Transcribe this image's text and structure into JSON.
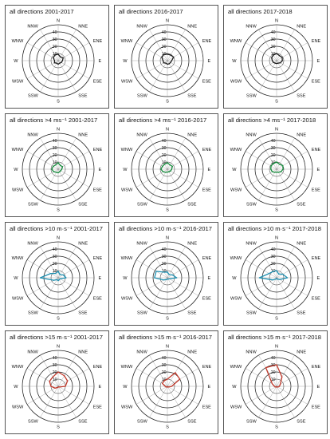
{
  "directions": [
    "N",
    "NNE",
    "ENE",
    "E",
    "ESE",
    "SSE",
    "S",
    "SSW",
    "WSW",
    "W",
    "WNW",
    "NNW"
  ],
  "ring_labels": [
    "10",
    "20",
    "30",
    "40"
  ],
  "colors": {
    "all": "#1a1a1a",
    "gt4": "#138a3a",
    "gt10": "#1f8fb0",
    "gt15": "#c0392b"
  },
  "chart_data": [
    {
      "type": "radar",
      "title": "all directions 2001-2017",
      "rlim": [
        0,
        50
      ],
      "color_key": "all",
      "values": [
        9,
        6,
        8,
        6,
        5,
        4,
        5,
        4,
        6,
        5,
        8,
        9
      ]
    },
    {
      "type": "radar",
      "title": "all directions 2016-2017",
      "rlim": [
        0,
        50
      ],
      "color_key": "all",
      "values": [
        9,
        9,
        10,
        6,
        5,
        5,
        5,
        4,
        6,
        6,
        9,
        10
      ]
    },
    {
      "type": "radar",
      "title": "all directions 2017-2018",
      "rlim": [
        0,
        50
      ],
      "color_key": "all",
      "values": [
        10,
        8,
        9,
        8,
        6,
        4,
        4,
        4,
        5,
        6,
        8,
        9
      ]
    },
    {
      "type": "radar",
      "title": "all directions >4 ms⁻¹ 2001-2017",
      "rlim": [
        0,
        50
      ],
      "color_key": "gt4",
      "values": [
        9,
        6,
        7,
        5,
        4,
        4,
        5,
        5,
        7,
        9,
        8,
        7
      ]
    },
    {
      "type": "radar",
      "title": "all directions >4 ms⁻¹ 2016-2017",
      "rlim": [
        0,
        50
      ],
      "color_key": "gt4",
      "values": [
        9,
        7,
        8,
        6,
        5,
        4,
        4,
        5,
        7,
        9,
        8,
        8
      ]
    },
    {
      "type": "radar",
      "title": "all directions >4 ms⁻¹ 2017-2018",
      "rlim": [
        0,
        50
      ],
      "color_key": "gt4",
      "values": [
        10,
        8,
        10,
        9,
        7,
        5,
        4,
        5,
        7,
        8,
        9,
        9
      ]
    },
    {
      "type": "radar",
      "title": "all directions >10 m·s⁻¹ 2001-2017",
      "rlim": [
        0,
        50
      ],
      "color_key": "gt10",
      "values": [
        9,
        5,
        8,
        11,
        3,
        3,
        4,
        3,
        7,
        25,
        12,
        7
      ]
    },
    {
      "type": "radar",
      "title": "all directions >10 m·s⁻¹ 2016-2017",
      "rlim": [
        0,
        50
      ],
      "color_key": "gt10",
      "values": [
        8,
        5,
        8,
        13,
        3,
        2,
        2,
        3,
        6,
        18,
        18,
        9
      ]
    },
    {
      "type": "radar",
      "title": "all directions >10 m·s⁻¹ 2017-2018",
      "rlim": [
        0,
        50
      ],
      "color_key": "gt10",
      "values": [
        10,
        6,
        10,
        15,
        5,
        2,
        1,
        2,
        6,
        24,
        12,
        10
      ]
    },
    {
      "type": "radar",
      "title": "all directions >15 m·s⁻¹ 2001-2017",
      "rlim": [
        0,
        50
      ],
      "color_key": "gt15",
      "values": [
        20,
        17,
        15,
        10,
        2,
        1,
        1,
        2,
        5,
        10,
        14,
        15
      ]
    },
    {
      "type": "radar",
      "title": "all directions >15 m·s⁻¹ 2016-2017",
      "rlim": [
        0,
        50
      ],
      "color_key": "gt15",
      "values": [
        10,
        22,
        20,
        6,
        2,
        1,
        1,
        1,
        2,
        3,
        8,
        9
      ]
    },
    {
      "type": "radar",
      "title": "all directions >15 m·s⁻¹ 2017-2018",
      "rlim": [
        0,
        50
      ],
      "color_key": "gt15",
      "values": [
        30,
        15,
        6,
        4,
        2,
        1,
        1,
        1,
        2,
        3,
        7,
        30
      ]
    }
  ]
}
